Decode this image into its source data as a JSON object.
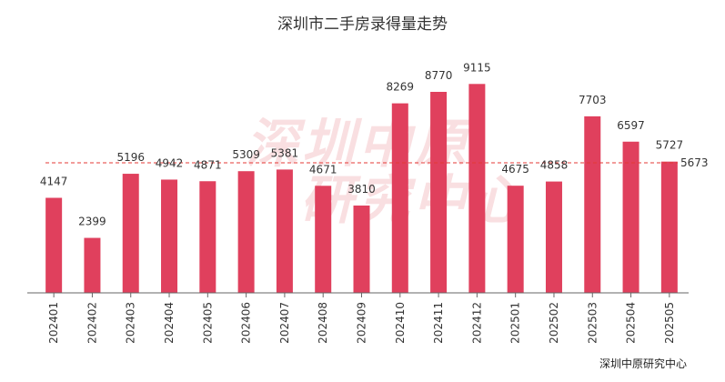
{
  "chart_data": {
    "type": "bar",
    "title": "深圳市二手房录得量走势",
    "source": "深圳中原研究中心",
    "watermark": "深圳中原研究中心",
    "categories": [
      "202401",
      "202402",
      "202403",
      "202404",
      "202405",
      "202406",
      "202407",
      "202408",
      "202409",
      "202410",
      "202411",
      "202412",
      "202501",
      "202502",
      "202503",
      "202504",
      "202505"
    ],
    "values": [
      4147,
      2399,
      5196,
      4942,
      4871,
      5309,
      5381,
      4671,
      3810,
      8269,
      8770,
      9115,
      4675,
      4858,
      7703,
      6597,
      5727
    ],
    "average_line": {
      "value": 5673,
      "label": "5673",
      "style": "dashed"
    },
    "ylim": [
      0,
      10000
    ],
    "grid": false,
    "colors": {
      "bar": "#e0405d",
      "average_line": "#e53935",
      "axis": "#666666",
      "label": "#333333",
      "watermark": "#f4c5c9"
    }
  }
}
